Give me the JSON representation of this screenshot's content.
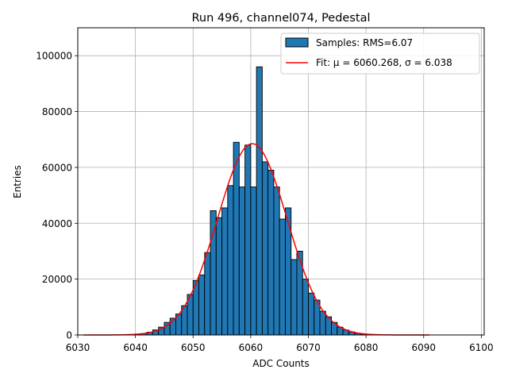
{
  "chart_data": {
    "type": "bar",
    "title": "Run 496, channel074, Pedestal",
    "xlabel": "ADC Counts",
    "ylabel": "Entries",
    "xlim": [
      6030,
      6100.5
    ],
    "ylim": [
      0,
      110000
    ],
    "xticks": [
      6030,
      6040,
      6050,
      6060,
      6070,
      6080,
      6090,
      6100
    ],
    "yticks": [
      0,
      20000,
      40000,
      60000,
      80000,
      100000
    ],
    "grid": true,
    "legend_position": "top-right",
    "colors": {
      "bar": "#1f77b4",
      "bar_edge": "#000000",
      "fit": "#ff0000",
      "grid": "#b0b0b0"
    },
    "histogram": {
      "name": "Samples: RMS=6.07",
      "bin_width": 1,
      "bin_starts": [
        6040,
        6041,
        6042,
        6043,
        6044,
        6045,
        6046,
        6047,
        6048,
        6049,
        6050,
        6051,
        6052,
        6053,
        6054,
        6055,
        6056,
        6057,
        6058,
        6059,
        6060,
        6061,
        6062,
        6063,
        6064,
        6065,
        6066,
        6067,
        6068,
        6069,
        6070,
        6071,
        6072,
        6073,
        6074,
        6075,
        6076,
        6077,
        6078,
        6079,
        6080,
        6081
      ],
      "values": [
        200,
        500,
        1000,
        1800,
        2800,
        4500,
        6000,
        7500,
        10500,
        14500,
        19500,
        21500,
        29500,
        44500,
        42000,
        45500,
        53500,
        69000,
        53000,
        68000,
        53000,
        96000,
        62000,
        59000,
        53000,
        41500,
        45500,
        27000,
        30000,
        20000,
        15000,
        12500,
        8500,
        6500,
        4500,
        2800,
        1800,
        1100,
        600,
        300,
        150,
        50
      ]
    },
    "fit": {
      "name": "Fit: μ = 6060.268, σ = 6.038",
      "type": "gaussian",
      "mu": 6060.268,
      "sigma": 6.038,
      "amplitude": 68500,
      "x_range": [
        6031,
        6091
      ]
    }
  }
}
